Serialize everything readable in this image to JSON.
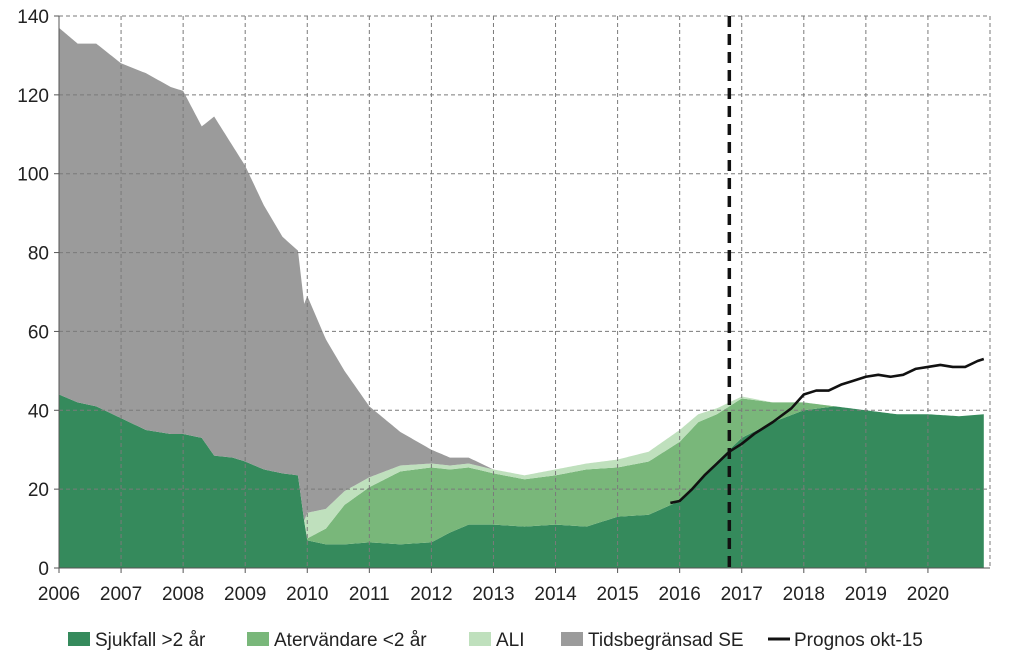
{
  "chart_data": {
    "type": "area",
    "x_unit": "year",
    "xlim": [
      2006,
      2021
    ],
    "ylim": [
      0,
      140
    ],
    "y_ticks": [
      "0",
      "20",
      "40",
      "60",
      "80",
      "100",
      "120",
      "140"
    ],
    "x_ticks": [
      "2006",
      "2007",
      "2008",
      "2009",
      "2010",
      "2011",
      "2012",
      "2013",
      "2014",
      "2015",
      "2016",
      "2017",
      "2018",
      "2019",
      "2020"
    ],
    "grid": true,
    "legend_position": "bottom",
    "vertical_marker_x": 2016.8,
    "stacked": true,
    "series": [
      {
        "name": "Sjukfall >2 år",
        "color": "#358a5c",
        "x": [
          2006.0,
          2006.3,
          2006.6,
          2007.0,
          2007.4,
          2007.8,
          2008.0,
          2008.3,
          2008.5,
          2008.8,
          2009.0,
          2009.3,
          2009.6,
          2009.85,
          2009.95,
          2010.0,
          2010.3,
          2010.6,
          2011.0,
          2011.5,
          2012.0,
          2012.3,
          2012.6,
          2013.0,
          2013.5,
          2014.0,
          2014.5,
          2015.0,
          2015.5,
          2016.0,
          2016.3,
          2016.6,
          2017.0,
          2017.5,
          2018.0,
          2018.5,
          2019.0,
          2019.5,
          2020.0,
          2020.5,
          2020.9
        ],
        "values": [
          44,
          42,
          41,
          38,
          35,
          34,
          34,
          33,
          28.5,
          28,
          27,
          25,
          24,
          23.5,
          12,
          7,
          6,
          6,
          6.5,
          6,
          6.5,
          9,
          11,
          11,
          10.5,
          11,
          10.5,
          13,
          13.5,
          17,
          22,
          27,
          33,
          37,
          40,
          41,
          40,
          39,
          39,
          38.5,
          39
        ]
      },
      {
        "name": "Atervändare <2 år",
        "color": "#79b77a",
        "x": [
          2006.0,
          2009.95,
          2010.0,
          2010.3,
          2010.6,
          2011.0,
          2011.5,
          2012.0,
          2012.3,
          2012.6,
          2013.0,
          2013.5,
          2014.0,
          2014.5,
          2015.0,
          2015.5,
          2016.0,
          2016.3,
          2016.6,
          2017.0,
          2017.5,
          2018.0,
          2018.5,
          2019.0,
          2020.9
        ],
        "values": [
          0,
          0,
          0.5,
          4,
          10,
          14,
          18.5,
          19,
          16,
          14.5,
          13,
          12,
          12.5,
          14.5,
          12.5,
          13.5,
          15,
          15,
          12,
          10,
          5,
          2,
          0,
          0,
          0
        ]
      },
      {
        "name": "ALI",
        "color": "#bfe0bd",
        "x": [
          2006.0,
          2009.95,
          2010.0,
          2010.3,
          2010.6,
          2011.0,
          2011.5,
          2012.0,
          2012.3,
          2012.6,
          2013.0,
          2013.5,
          2014.0,
          2014.5,
          2015.0,
          2015.5,
          2016.0,
          2016.3,
          2016.6,
          2017.0,
          2017.5,
          2018.0,
          2018.5,
          2019.0,
          2020.9
        ],
        "values": [
          0,
          0,
          6.5,
          5,
          3.5,
          2.5,
          1.5,
          1,
          1,
          1,
          1,
          1,
          1.5,
          1.5,
          2,
          2.5,
          3,
          2,
          1.5,
          0.5,
          0,
          0,
          0,
          0,
          0
        ]
      },
      {
        "name": "Tidsbegränsad SE",
        "color": "#9b9b9b",
        "x": [
          2006.0,
          2006.3,
          2006.6,
          2007.0,
          2007.4,
          2007.8,
          2008.0,
          2008.3,
          2008.5,
          2008.8,
          2009.0,
          2009.3,
          2009.6,
          2009.85,
          2009.95,
          2010.0,
          2010.3,
          2010.6,
          2011.0,
          2011.5,
          2012.0,
          2012.3,
          2012.6,
          2013.0,
          2013.5,
          2014.0,
          2020.9
        ],
        "values": [
          93,
          91,
          92,
          90,
          90.5,
          88,
          87,
          79,
          86,
          79,
          75,
          67,
          60,
          57,
          55,
          55,
          43,
          30.5,
          18,
          8.5,
          3.5,
          2,
          1.5,
          0,
          0,
          0,
          0
        ]
      },
      {
        "name": "Prognos okt-15",
        "color": "#111111",
        "kind": "line",
        "x": [
          2015.85,
          2016.0,
          2016.2,
          2016.4,
          2016.6,
          2016.8,
          2017.0,
          2017.2,
          2017.5,
          2017.8,
          2018.0,
          2018.2,
          2018.4,
          2018.6,
          2018.8,
          2019.0,
          2019.2,
          2019.4,
          2019.6,
          2019.8,
          2020.0,
          2020.2,
          2020.4,
          2020.6,
          2020.8,
          2020.9
        ],
        "values": [
          16.5,
          17,
          20,
          23.5,
          26.5,
          29.5,
          31.5,
          34,
          37,
          40.5,
          44,
          45,
          45,
          46.5,
          47.5,
          48.5,
          49,
          48.5,
          49,
          50.5,
          51,
          51.5,
          51,
          51,
          52.5,
          53
        ]
      }
    ]
  }
}
